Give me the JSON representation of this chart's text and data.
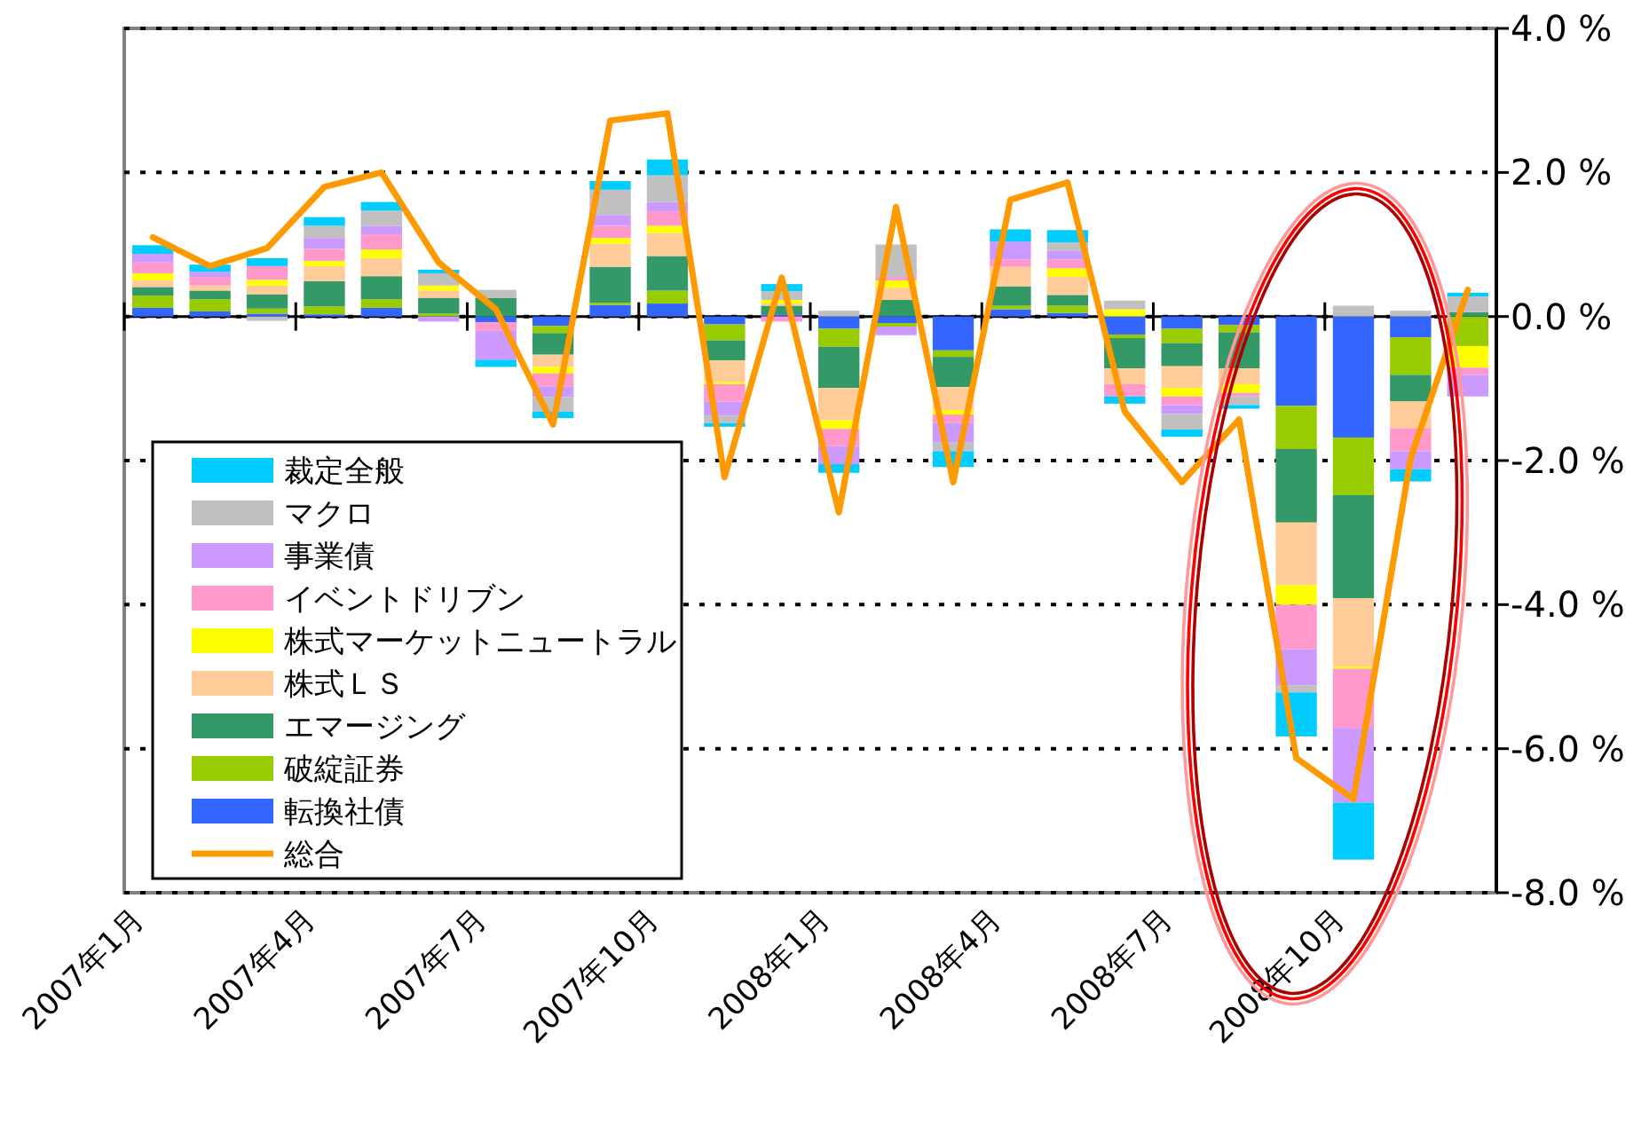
{
  "chart_data": {
    "type": "bar",
    "stacked": true,
    "grid": "y",
    "legend": "bottom left",
    "ylim": [
      -8,
      4
    ],
    "yticks": [
      {
        "value": 4,
        "label": "4.0 %"
      },
      {
        "value": 2,
        "label": "2.0 %"
      },
      {
        "value": 0,
        "label": "0.0 %"
      },
      {
        "value": -2,
        "label": "-2.0 %"
      },
      {
        "value": -4,
        "label": "-4.0 %"
      },
      {
        "value": -6,
        "label": "-6.0 %"
      },
      {
        "value": -8,
        "label": "-8.0 %"
      }
    ],
    "categories": [
      "2007年1月",
      null,
      null,
      "2007年4月",
      null,
      null,
      "2007年7月",
      null,
      null,
      "2007年10月",
      null,
      null,
      "2008年1月",
      null,
      null,
      "2008年4月",
      null,
      null,
      "2008年7月",
      null,
      null,
      "2008年10月",
      null,
      null
    ],
    "series": [
      {
        "name": "転換社債",
        "color": "#3366ff",
        "values": [
          0.12,
          0.07,
          0.04,
          0.03,
          0.12,
          null,
          -0.08,
          -0.13,
          0.16,
          0.18,
          -0.11,
          0.03,
          -0.17,
          -0.09,
          -0.47,
          0.1,
          0.05,
          -0.25,
          -0.17,
          -0.12,
          -1.24,
          -1.68,
          -0.29,
          null
        ]
      },
      {
        "name": "破綻証券",
        "color": "#99cc00",
        "values": [
          0.17,
          0.17,
          0.07,
          0.11,
          0.12,
          0.04,
          null,
          -0.1,
          0.03,
          0.18,
          -0.22,
          null,
          -0.25,
          -0.05,
          -0.09,
          0.05,
          0.1,
          -0.05,
          -0.2,
          -0.1,
          -0.6,
          -0.8,
          -0.52,
          -0.41
        ]
      },
      {
        "name": "エマージング",
        "color": "#339966",
        "values": [
          0.12,
          0.12,
          0.2,
          0.35,
          0.32,
          0.22,
          0.26,
          -0.3,
          0.5,
          0.48,
          -0.28,
          0.12,
          -0.57,
          0.23,
          -0.42,
          0.27,
          0.15,
          -0.42,
          -0.32,
          -0.5,
          -1.02,
          -1.43,
          -0.37,
          0.06
        ]
      },
      {
        "name": "株式ＬＳ",
        "color": "#ffcc99",
        "values": [
          0.09,
          0.07,
          0.12,
          0.21,
          0.25,
          0.1,
          null,
          -0.17,
          0.32,
          0.32,
          -0.3,
          0.03,
          -0.45,
          0.17,
          -0.32,
          0.27,
          0.25,
          -0.22,
          -0.3,
          -0.22,
          -0.87,
          -0.95,
          -0.37,
          null
        ]
      },
      {
        "name": "株式マーケットニュートラル",
        "color": "#ffff00",
        "values": [
          0.1,
          null,
          0.08,
          0.07,
          0.12,
          0.07,
          null,
          -0.09,
          0.08,
          0.1,
          -0.03,
          0.05,
          -0.12,
          0.1,
          -0.06,
          null,
          0.12,
          0.1,
          -0.12,
          -0.12,
          -0.27,
          -0.03,
          null,
          -0.3
        ]
      },
      {
        "name": "イベントドリブン",
        "color": "#ff99cc",
        "values": [
          0.15,
          0.12,
          0.19,
          0.17,
          0.21,
          null,
          -0.12,
          -0.18,
          0.17,
          0.2,
          -0.24,
          -0.07,
          -0.24,
          0.05,
          -0.12,
          0.1,
          0.12,
          -0.17,
          -0.12,
          -0.05,
          -0.62,
          -0.82,
          -0.32,
          -0.1
        ]
      },
      {
        "name": "事業債",
        "color": "#cc99ff",
        "values": [
          0.12,
          0.07,
          null,
          0.15,
          0.12,
          -0.07,
          -0.4,
          -0.15,
          0.15,
          0.13,
          -0.2,
          null,
          -0.25,
          -0.12,
          -0.27,
          0.25,
          0.12,
          null,
          -0.12,
          null,
          -0.5,
          -1.04,
          -0.25,
          -0.3
        ]
      },
      {
        "name": "マクロ",
        "color": "#c0c0c0",
        "values": [
          null,
          null,
          -0.06,
          0.17,
          0.21,
          0.17,
          0.11,
          -0.2,
          0.35,
          0.37,
          -0.1,
          0.12,
          0.08,
          0.45,
          -0.12,
          null,
          0.12,
          0.12,
          -0.22,
          -0.12,
          -0.1,
          0.15,
          0.08,
          0.22
        ]
      },
      {
        "name": "裁定全般",
        "color": "#00ccff",
        "values": [
          0.12,
          0.1,
          0.11,
          0.12,
          0.12,
          0.05,
          -0.1,
          -0.09,
          0.12,
          0.22,
          -0.05,
          0.1,
          -0.12,
          null,
          -0.22,
          0.17,
          0.17,
          -0.1,
          -0.1,
          -0.05,
          -0.61,
          -0.79,
          -0.17,
          0.05
        ]
      },
      {
        "name": "総合",
        "type": "line",
        "color": "#ff9900",
        "values": [
          1.1,
          0.7,
          0.95,
          1.8,
          2.0,
          0.75,
          0.1,
          -1.5,
          2.72,
          2.82,
          -2.23,
          0.54,
          -2.72,
          1.52,
          -2.3,
          1.62,
          1.86,
          -1.32,
          -2.3,
          -1.43,
          -6.13,
          -6.7,
          -1.97,
          0.37
        ]
      }
    ]
  }
}
